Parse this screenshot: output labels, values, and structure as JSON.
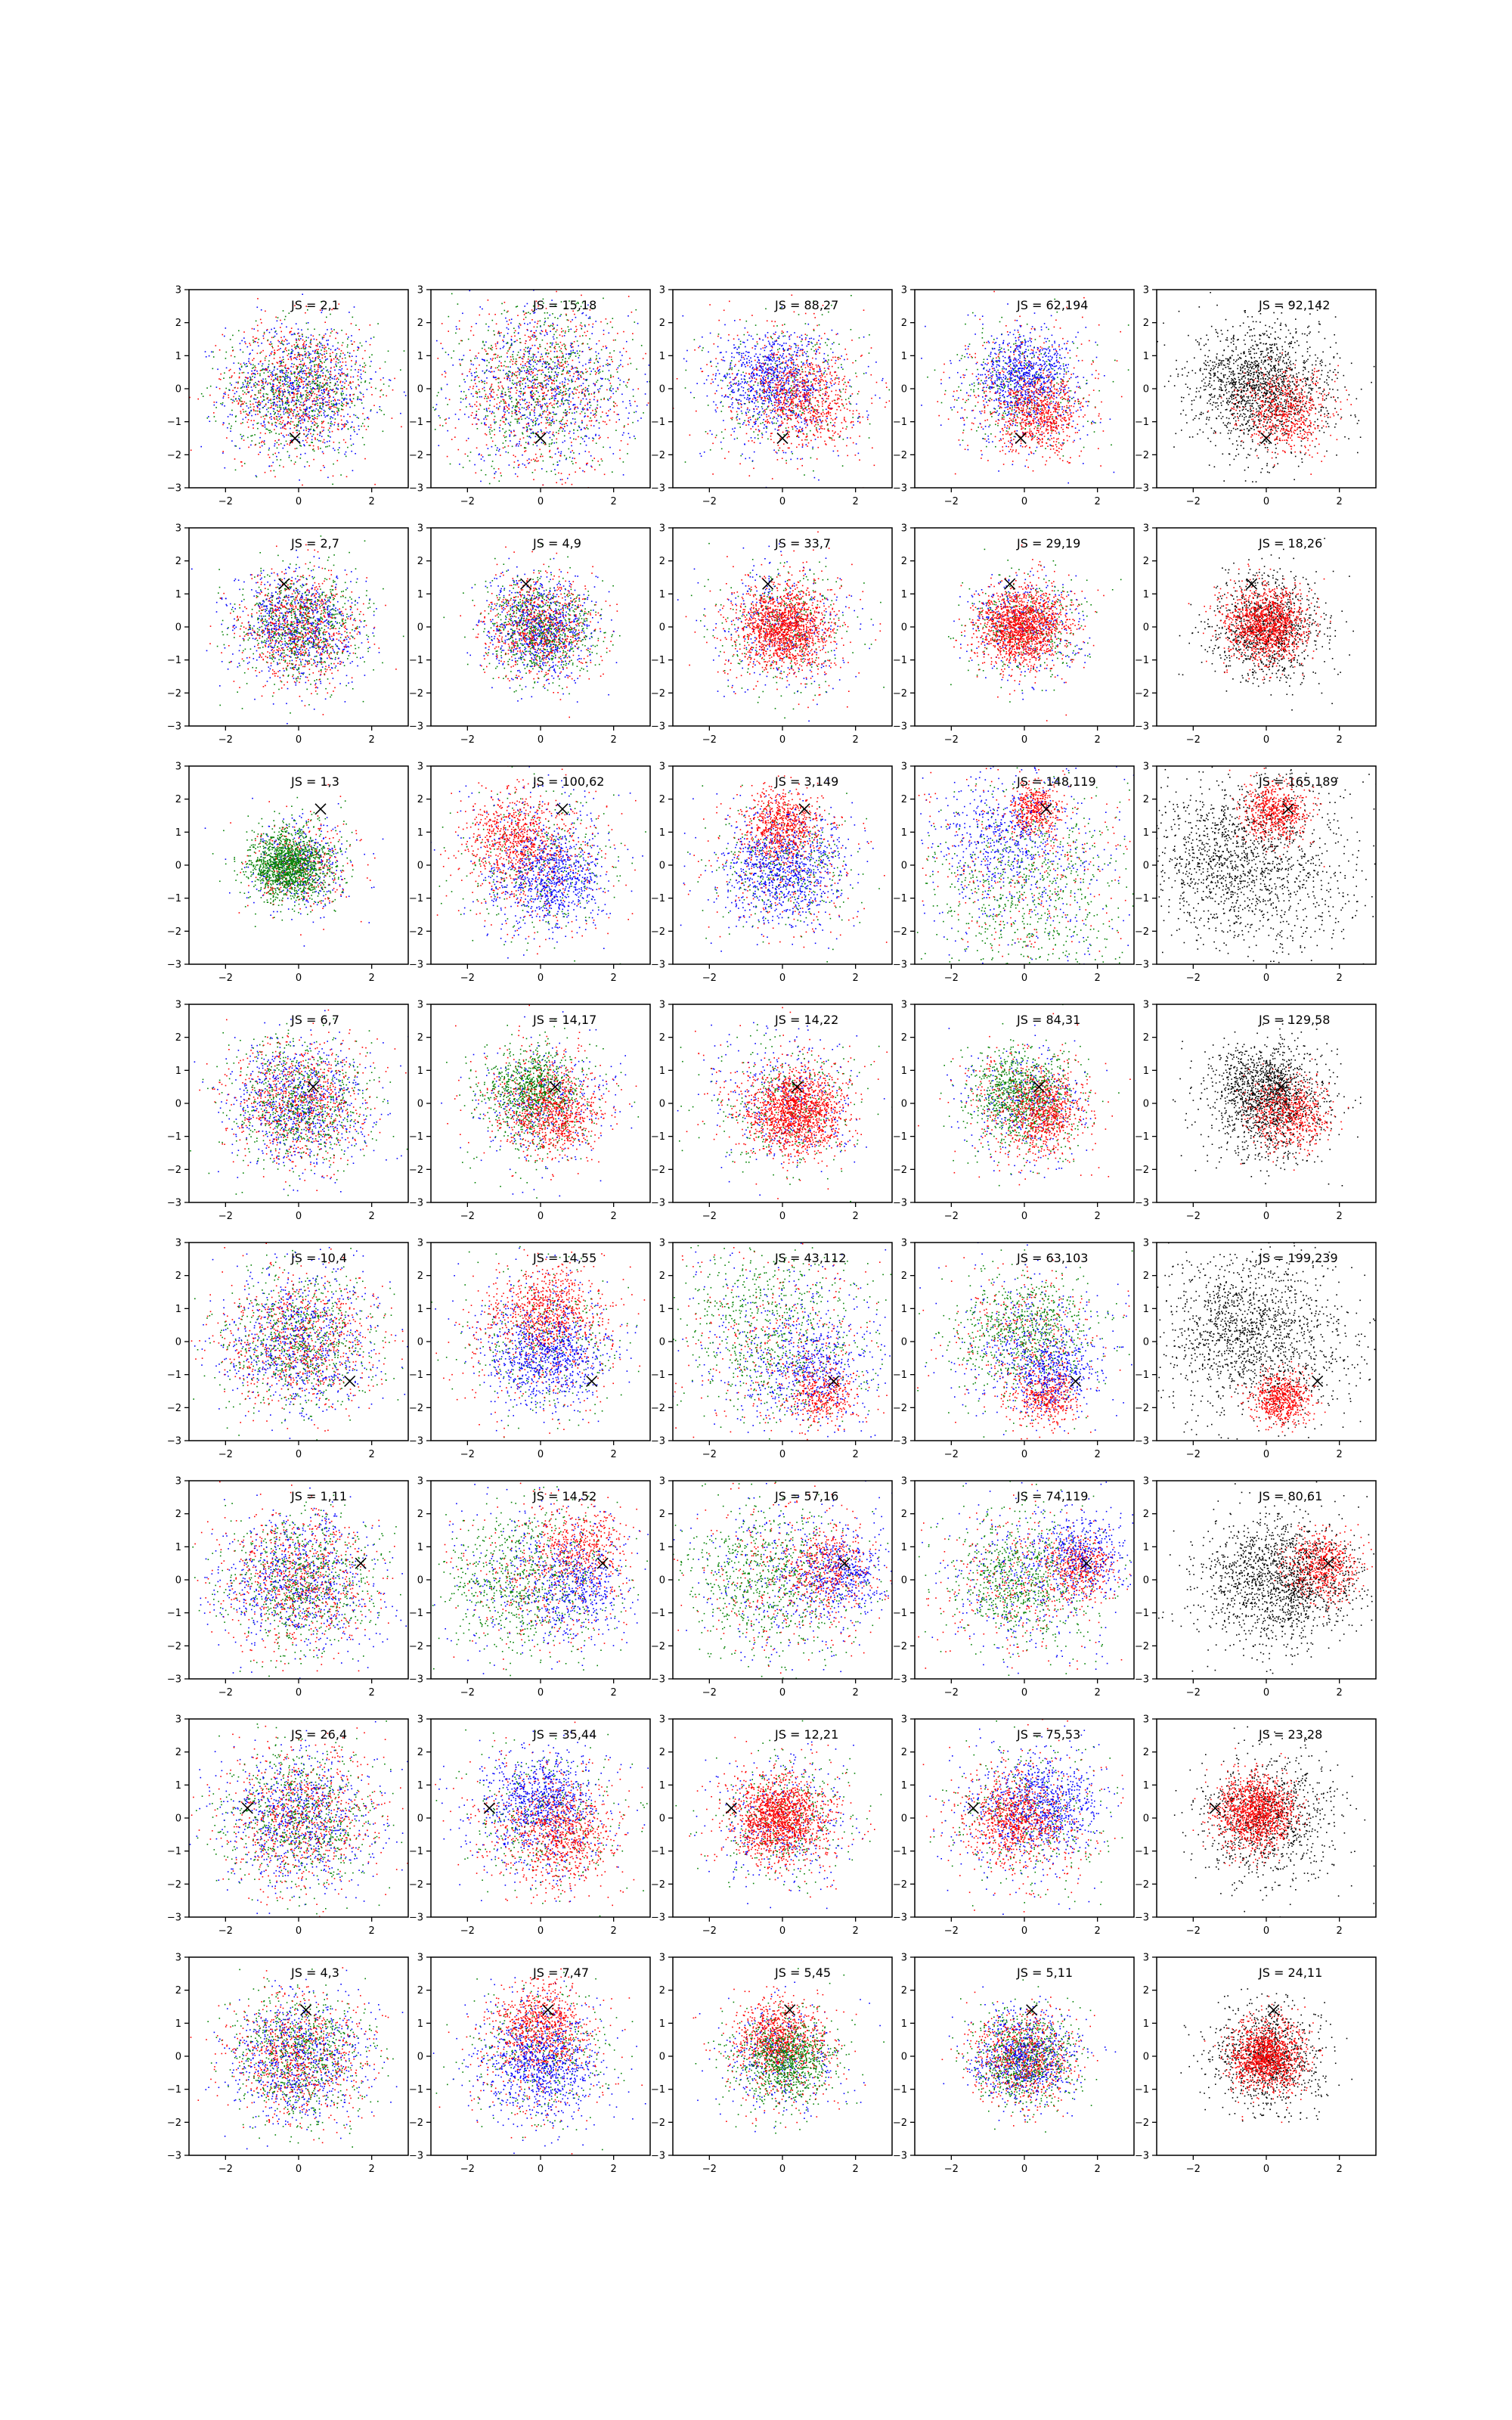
{
  "figure": {
    "rows": 8,
    "cols": 5,
    "points_per_panel": 2200,
    "series_colors": [
      "#0000ff",
      "#008000",
      "#ff0000",
      "#000000"
    ],
    "marker_color": "#000000",
    "axis_color": "#000000"
  },
  "chart_data": {
    "type": "scatter",
    "xlim": [
      -3,
      3
    ],
    "ylim": [
      -3,
      3
    ],
    "xticks": [
      -2,
      0,
      2
    ],
    "yticks": [
      -3,
      -2,
      -1,
      0,
      1,
      2,
      3
    ],
    "grid": false,
    "panels": [
      {
        "label": "JS = 2,1",
        "marker": [
          -0.1,
          -1.5
        ],
        "mode": "mix",
        "spread": 1.0,
        "clusters": []
      },
      {
        "label": "JS = 15,18",
        "marker": [
          0.0,
          -1.5
        ],
        "mode": "mix",
        "spread": 1.25,
        "clusters": []
      },
      {
        "label": "JS = 88,27",
        "marker": [
          0.0,
          -1.5
        ],
        "mode": "mix",
        "spread": 1.1,
        "clusters": [
          {
            "color": "blue",
            "cx": -0.3,
            "cy": 0.3,
            "s": 0.7
          },
          {
            "color": "red",
            "cx": 0.6,
            "cy": -0.3,
            "s": 0.7
          }
        ]
      },
      {
        "label": "JS = 62,194",
        "marker": [
          -0.1,
          -1.5
        ],
        "mode": "mix",
        "spread": 1.0,
        "clusters": [
          {
            "color": "blue",
            "cx": 0.0,
            "cy": 0.4,
            "s": 0.6
          },
          {
            "color": "red",
            "cx": 0.4,
            "cy": -0.8,
            "s": 0.55
          }
        ]
      },
      {
        "label": "JS = 92,142",
        "marker": [
          0.0,
          -1.5
        ],
        "mode": "bw",
        "spread": 1.0,
        "clusters": [
          {
            "color": "black",
            "cx": -0.3,
            "cy": 0.2,
            "s": 0.8
          },
          {
            "color": "red",
            "cx": 0.5,
            "cy": -0.7,
            "s": 0.6
          }
        ]
      },
      {
        "label": "JS = 2,7",
        "marker": [
          -0.4,
          1.3
        ],
        "mode": "mix",
        "spread": 0.85,
        "clusters": []
      },
      {
        "label": "JS = 4,9",
        "marker": [
          -0.4,
          1.3
        ],
        "mode": "mix",
        "spread": 0.75,
        "clusters": []
      },
      {
        "label": "JS = 33,7",
        "marker": [
          -0.4,
          1.3
        ],
        "mode": "mix",
        "spread": 0.95,
        "clusters": [
          {
            "color": "red",
            "cx": 0.0,
            "cy": 0.0,
            "s": 0.6
          }
        ]
      },
      {
        "label": "JS = 29,19",
        "marker": [
          -0.4,
          1.3
        ],
        "mode": "mix",
        "spread": 0.8,
        "clusters": [
          {
            "color": "red",
            "cx": -0.1,
            "cy": 0.0,
            "s": 0.55
          }
        ]
      },
      {
        "label": "JS = 18,26",
        "marker": [
          -0.4,
          1.3
        ],
        "mode": "bw",
        "spread": 0.8,
        "clusters": [
          {
            "color": "red",
            "cx": 0.0,
            "cy": 0.1,
            "s": 0.55
          }
        ]
      },
      {
        "label": "JS = 1,3",
        "marker": [
          0.6,
          1.7
        ],
        "mode": "mix",
        "spread": 0.7,
        "clusters": [
          {
            "color": "green",
            "cx": -0.3,
            "cy": 0.0,
            "s": 0.5
          }
        ]
      },
      {
        "label": "JS = 100,62",
        "marker": [
          0.6,
          1.7
        ],
        "mode": "mix",
        "spread": 1.1,
        "clusters": [
          {
            "color": "red",
            "cx": -0.7,
            "cy": 0.8,
            "s": 0.7
          },
          {
            "color": "blue",
            "cx": 0.3,
            "cy": -0.4,
            "s": 0.7
          }
        ]
      },
      {
        "label": "JS = 3,149",
        "marker": [
          0.6,
          1.7
        ],
        "mode": "mix",
        "spread": 1.0,
        "clusters": [
          {
            "color": "red",
            "cx": 0.0,
            "cy": 1.3,
            "s": 0.5
          },
          {
            "color": "blue",
            "cx": 0.0,
            "cy": -0.2,
            "s": 0.8
          }
        ]
      },
      {
        "label": "JS = 148,119",
        "marker": [
          0.6,
          1.7
        ],
        "mode": "mix",
        "spread": 1.6,
        "clusters": [
          {
            "color": "red",
            "cx": 0.3,
            "cy": 1.7,
            "s": 0.35
          },
          {
            "color": "blue",
            "cx": -0.6,
            "cy": 1.0,
            "s": 0.8
          },
          {
            "color": "green",
            "cx": 0.0,
            "cy": -1.0,
            "s": 1.3
          }
        ]
      },
      {
        "label": "JS = 165,189",
        "marker": [
          0.6,
          1.7
        ],
        "mode": "bw",
        "spread": 1.4,
        "clusters": [
          {
            "color": "red",
            "cx": 0.2,
            "cy": 1.6,
            "s": 0.45
          },
          {
            "color": "black",
            "cx": -1.3,
            "cy": 0.3,
            "s": 1.0
          }
        ]
      },
      {
        "label": "JS = 6,7",
        "marker": [
          0.4,
          0.5
        ],
        "mode": "mix",
        "spread": 0.95,
        "clusters": []
      },
      {
        "label": "JS = 14,17",
        "marker": [
          0.4,
          0.5
        ],
        "mode": "mix",
        "spread": 0.95,
        "clusters": [
          {
            "color": "green",
            "cx": -0.3,
            "cy": 0.4,
            "s": 0.6
          },
          {
            "color": "red",
            "cx": 0.4,
            "cy": -0.3,
            "s": 0.6
          }
        ]
      },
      {
        "label": "JS = 14,22",
        "marker": [
          0.4,
          0.5
        ],
        "mode": "mix",
        "spread": 1.0,
        "clusters": [
          {
            "color": "red",
            "cx": 0.4,
            "cy": -0.3,
            "s": 0.6
          }
        ]
      },
      {
        "label": "JS = 84,31",
        "marker": [
          0.4,
          0.5
        ],
        "mode": "mix",
        "spread": 0.9,
        "clusters": [
          {
            "color": "green",
            "cx": -0.2,
            "cy": 0.3,
            "s": 0.6
          },
          {
            "color": "red",
            "cx": 0.6,
            "cy": -0.3,
            "s": 0.55
          }
        ]
      },
      {
        "label": "JS = 129,58",
        "marker": [
          0.4,
          0.5
        ],
        "mode": "bw",
        "spread": 0.9,
        "clusters": [
          {
            "color": "black",
            "cx": -0.1,
            "cy": 0.5,
            "s": 0.6
          },
          {
            "color": "red",
            "cx": 0.6,
            "cy": -0.3,
            "s": 0.55
          }
        ]
      },
      {
        "label": "JS = 10,4",
        "marker": [
          1.4,
          -1.2
        ],
        "mode": "mix",
        "spread": 1.05,
        "clusters": []
      },
      {
        "label": "JS = 14,55",
        "marker": [
          1.4,
          -1.2
        ],
        "mode": "mix",
        "spread": 1.1,
        "clusters": [
          {
            "color": "red",
            "cx": 0.2,
            "cy": 1.0,
            "s": 0.7
          },
          {
            "color": "blue",
            "cx": 0.2,
            "cy": -0.5,
            "s": 0.7
          }
        ]
      },
      {
        "label": "JS = 43,112",
        "marker": [
          1.4,
          -1.2
        ],
        "mode": "mix",
        "spread": 1.5,
        "clusters": [
          {
            "color": "red",
            "cx": 1.0,
            "cy": -1.6,
            "s": 0.45
          },
          {
            "color": "blue",
            "cx": 0.8,
            "cy": -0.8,
            "s": 0.8
          },
          {
            "color": "green",
            "cx": -0.5,
            "cy": 0.6,
            "s": 1.2
          }
        ]
      },
      {
        "label": "JS = 63,103",
        "marker": [
          1.4,
          -1.2
        ],
        "mode": "mix",
        "spread": 1.1,
        "clusters": [
          {
            "color": "green",
            "cx": 0.0,
            "cy": 0.5,
            "s": 0.8
          },
          {
            "color": "red",
            "cx": 0.6,
            "cy": -1.7,
            "s": 0.45
          },
          {
            "color": "blue",
            "cx": 0.8,
            "cy": -0.9,
            "s": 0.6
          }
        ]
      },
      {
        "label": "JS = 199,239",
        "marker": [
          1.4,
          -1.2
        ],
        "mode": "bw",
        "spread": 1.4,
        "clusters": [
          {
            "color": "black",
            "cx": -0.9,
            "cy": 0.6,
            "s": 1.0
          },
          {
            "color": "red",
            "cx": 0.4,
            "cy": -1.7,
            "s": 0.4
          }
        ]
      },
      {
        "label": "JS = 1,11",
        "marker": [
          1.7,
          0.5
        ],
        "mode": "mix",
        "spread": 1.05,
        "clusters": []
      },
      {
        "label": "JS = 14,52",
        "marker": [
          1.7,
          0.5
        ],
        "mode": "mix",
        "spread": 1.2,
        "clusters": [
          {
            "color": "red",
            "cx": 1.1,
            "cy": 1.0,
            "s": 0.6
          },
          {
            "color": "blue",
            "cx": 1.0,
            "cy": -0.2,
            "s": 0.7
          },
          {
            "color": "green",
            "cx": -0.8,
            "cy": -0.1,
            "s": 1.0
          }
        ]
      },
      {
        "label": "JS = 57,16",
        "marker": [
          1.7,
          0.5
        ],
        "mode": "mix",
        "spread": 1.3,
        "clusters": [
          {
            "color": "red",
            "cx": 1.2,
            "cy": 0.4,
            "s": 0.6
          },
          {
            "color": "blue",
            "cx": 1.6,
            "cy": 0.2,
            "s": 0.6
          },
          {
            "color": "green",
            "cx": -0.6,
            "cy": 0.0,
            "s": 1.0
          }
        ]
      },
      {
        "label": "JS = 74,119",
        "marker": [
          1.7,
          0.5
        ],
        "mode": "mix",
        "spread": 1.2,
        "clusters": [
          {
            "color": "red",
            "cx": 1.5,
            "cy": 0.4,
            "s": 0.45
          },
          {
            "color": "blue",
            "cx": 1.6,
            "cy": 0.8,
            "s": 0.6
          },
          {
            "color": "green",
            "cx": -0.2,
            "cy": 0.0,
            "s": 0.8
          }
        ]
      },
      {
        "label": "JS = 80,61",
        "marker": [
          1.7,
          0.5
        ],
        "mode": "bw",
        "spread": 1.0,
        "clusters": [
          {
            "color": "red",
            "cx": 1.5,
            "cy": 0.4,
            "s": 0.5
          },
          {
            "color": "black",
            "cx": 0.8,
            "cy": 0.0,
            "s": 0.9
          }
        ]
      },
      {
        "label": "JS = 26,4",
        "marker": [
          -1.4,
          0.3
        ],
        "mode": "mix",
        "spread": 1.05,
        "clusters": []
      },
      {
        "label": "JS = 35,44",
        "marker": [
          -1.4,
          0.3
        ],
        "mode": "mix",
        "spread": 1.1,
        "clusters": [
          {
            "color": "blue",
            "cx": 0.0,
            "cy": 0.6,
            "s": 0.7
          },
          {
            "color": "red",
            "cx": 0.6,
            "cy": -0.5,
            "s": 0.7
          }
        ]
      },
      {
        "label": "JS = 12,21",
        "marker": [
          -1.4,
          0.3
        ],
        "mode": "mix",
        "spread": 0.95,
        "clusters": [
          {
            "color": "red",
            "cx": -0.1,
            "cy": 0.0,
            "s": 0.6
          }
        ]
      },
      {
        "label": "JS = 75,53",
        "marker": [
          -1.4,
          0.3
        ],
        "mode": "mix",
        "spread": 1.1,
        "clusters": [
          {
            "color": "blue",
            "cx": 0.5,
            "cy": 0.5,
            "s": 0.7
          },
          {
            "color": "red",
            "cx": -0.3,
            "cy": 0.0,
            "s": 0.6
          }
        ]
      },
      {
        "label": "JS = 23,28",
        "marker": [
          -1.4,
          0.3
        ],
        "mode": "bw",
        "spread": 0.95,
        "clusters": [
          {
            "color": "red",
            "cx": -0.3,
            "cy": 0.2,
            "s": 0.55
          }
        ]
      },
      {
        "label": "JS = 4,3",
        "marker": [
          0.2,
          1.4
        ],
        "mode": "mix",
        "spread": 0.95,
        "clusters": []
      },
      {
        "label": "JS = 7,47",
        "marker": [
          0.2,
          1.4
        ],
        "mode": "mix",
        "spread": 1.0,
        "clusters": [
          {
            "color": "red",
            "cx": 0.0,
            "cy": 1.0,
            "s": 0.6
          },
          {
            "color": "blue",
            "cx": 0.0,
            "cy": -0.3,
            "s": 0.7
          }
        ]
      },
      {
        "label": "JS = 5,45",
        "marker": [
          0.2,
          1.4
        ],
        "mode": "mix",
        "spread": 0.85,
        "clusters": [
          {
            "color": "red",
            "cx": -0.1,
            "cy": 0.6,
            "s": 0.55
          },
          {
            "color": "green",
            "cx": 0.1,
            "cy": -0.1,
            "s": 0.55
          }
        ]
      },
      {
        "label": "JS = 5,11",
        "marker": [
          0.2,
          1.4
        ],
        "mode": "mix",
        "spread": 0.7,
        "clusters": []
      },
      {
        "label": "JS = 24,11",
        "marker": [
          0.2,
          1.4
        ],
        "mode": "bw",
        "spread": 0.75,
        "clusters": [
          {
            "color": "red",
            "cx": 0.0,
            "cy": 0.0,
            "s": 0.5
          }
        ]
      }
    ]
  }
}
